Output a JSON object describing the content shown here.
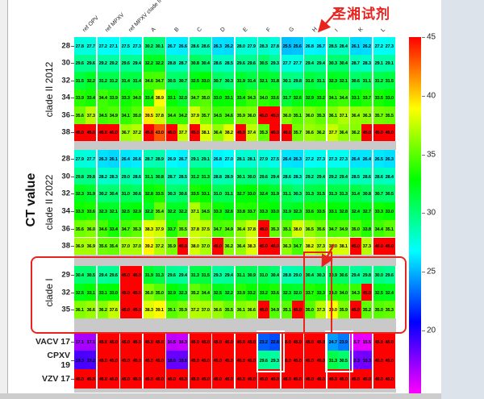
{
  "annotations": {
    "label": "圣湘试剂",
    "color": "#e8241f"
  },
  "chart_data": {
    "type": "heatmap",
    "title": "",
    "ylabel": "CT value",
    "legend_position": "right",
    "colorbar": {
      "min": 15,
      "max": 45,
      "ticks": [
        45,
        40,
        35,
        30,
        25,
        20
      ]
    },
    "columns": [
      "ref OPV",
      "ref MPXV",
      "ref MPXV clade II",
      "A",
      "B",
      "C",
      "D",
      "E",
      "F",
      "G",
      "H",
      "I",
      "K",
      "L"
    ],
    "blocks": [
      {
        "label": "clade II 2012",
        "rows": [
          {
            "tick": "28",
            "values": [
              27.8,
              27.7,
              27.2,
              27.1,
              27.5,
              27.3,
              30.2,
              30.1,
              26.7,
              26.6,
              28.6,
              28.6,
              26.3,
              26.2,
              28.0,
              27.9,
              28.3,
              27.8,
              25.5,
              25.6,
              26.8,
              26.7,
              28.5,
              28.4,
              26.1,
              26.2,
              27.2,
              27.3
            ]
          },
          {
            "tick": "30",
            "values": [
              29.6,
              29.6,
              29.2,
              29.2,
              29.6,
              29.4,
              32.2,
              32.2,
              28.8,
              28.7,
              30.8,
              30.4,
              28.6,
              28.5,
              29.6,
              29.6,
              30.5,
              29.3,
              27.7,
              27.7,
              29.4,
              29.4,
              30.3,
              30.4,
              28.7,
              28.3,
              29.1,
              29.1
            ]
          },
          {
            "tick": "32",
            "values": [
              31.5,
              32.2,
              31.2,
              31.2,
              31.4,
              31.4,
              34.6,
              34.7,
              30.5,
              30.7,
              32.5,
              33.0,
              30.7,
              30.3,
              31.9,
              31.4,
              32.1,
              31.8,
              30.1,
              29.8,
              31.6,
              31.1,
              32.3,
              32.1,
              30.6,
              31.1,
              31.2,
              31.5
            ]
          },
          {
            "tick": "34",
            "values": [
              33.9,
              33.4,
              34.4,
              33.9,
              33.3,
              34.0,
              33.4,
              38.9,
              33.1,
              32.0,
              34.7,
              35.0,
              33.0,
              33.1,
              33.4,
              34.3,
              34.0,
              33.6,
              31.7,
              32.6,
              32.9,
              33.2,
              34.1,
              34.4,
              33.1,
              33.7,
              33.5,
              33.0
            ]
          },
          {
            "tick": "36",
            "values": [
              35.6,
              37.3,
              34.5,
              34.9,
              34.1,
              35.0,
              39.5,
              37.8,
              34.4,
              34.2,
              37.9,
              35.7,
              34.5,
              34.6,
              35.9,
              36.0,
              45.0,
              45.0,
              36.0,
              35.1,
              36.0,
              35.3,
              36.1,
              37.1,
              36.4,
              36.3,
              35.7,
              35.5
            ]
          },
          {
            "tick": "38",
            "values": [
              45.0,
              45.0,
              45.0,
              45.0,
              36.7,
              37.2,
              45.0,
              43.0,
              45.0,
              37.7,
              45.0,
              38.1,
              36.4,
              38.2,
              45.0,
              37.4,
              35.3,
              45.0,
              45.0,
              35.7,
              36.6,
              36.2,
              37.7,
              36.4,
              36.2,
              45.0,
              45.0,
              45.0
            ]
          }
        ]
      },
      {
        "label": "clade II 2022",
        "rows": [
          {
            "tick": "28",
            "values": [
              27.9,
              27.7,
              26.3,
              26.1,
              26.4,
              26.6,
              28.7,
              28.9,
              26.9,
              26.7,
              29.1,
              29.1,
              26.8,
              27.0,
              28.1,
              28.1,
              27.9,
              27.5,
              26.4,
              26.3,
              27.2,
              27.3,
              27.3,
              27.3,
              26.4,
              26.4,
              26.5,
              26.3
            ]
          },
          {
            "tick": "30",
            "values": [
              29.8,
              29.8,
              28.2,
              28.3,
              29.0,
              28.6,
              31.1,
              30.8,
              28.7,
              28.5,
              31.2,
              31.3,
              28.8,
              28.9,
              30.1,
              30.0,
              29.6,
              29.4,
              28.6,
              28.3,
              29.2,
              29.4,
              29.2,
              29.4,
              28.5,
              28.6,
              28.6,
              28.4
            ]
          },
          {
            "tick": "32",
            "values": [
              32.3,
              31.9,
              30.2,
              30.4,
              31.0,
              30.6,
              32.8,
              33.5,
              30.3,
              30.6,
              33.5,
              33.1,
              31.0,
              31.1,
              32.7,
              33.0,
              32.4,
              31.9,
              31.1,
              30.3,
              31.3,
              31.5,
              31.3,
              31.3,
              31.4,
              30.8,
              30.7,
              30.5
            ]
          },
          {
            "tick": "34",
            "values": [
              33.3,
              33.6,
              32.3,
              32.1,
              32.5,
              32.9,
              32.2,
              35.4,
              32.2,
              32.2,
              37.1,
              34.5,
              33.3,
              32.6,
              33.8,
              33.7,
              33.3,
              33.0,
              31.9,
              32.3,
              33.6,
              33.5,
              33.1,
              32.8,
              32.4,
              32.7,
              33.3,
              33.0
            ]
          },
          {
            "tick": "36",
            "values": [
              35.6,
              36.0,
              34.6,
              33.4,
              34.7,
              35.3,
              38.3,
              37.9,
              33.7,
              35.5,
              37.8,
              37.5,
              34.7,
              34.9,
              36.4,
              37.8,
              45.0,
              35.3,
              35.1,
              38.0,
              36.5,
              35.6,
              34.7,
              34.9,
              35.0,
              33.8,
              34.4,
              35.1
            ]
          },
          {
            "tick": "38",
            "values": [
              36.9,
              36.9,
              35.6,
              35.4,
              37.0,
              37.0,
              39.2,
              37.2,
              35.9,
              45.0,
              38.0,
              37.0,
              45.0,
              36.2,
              36.4,
              38.3,
              45.0,
              45.0,
              36.3,
              34.7,
              38.2,
              37.3,
              38.0,
              38.1,
              45.0,
              37.3,
              45.0,
              45.0
            ]
          }
        ]
      },
      {
        "label": "clade I",
        "rows": [
          {
            "tick": "29",
            "values": [
              30.4,
              30.5,
              29.4,
              29.6,
              45.0,
              45.0,
              31.9,
              31.3,
              29.6,
              29.4,
              31.3,
              31.5,
              29.3,
              29.4,
              31.1,
              30.9,
              31.0,
              30.4,
              28.8,
              29.0,
              30.4,
              30.3,
              30.9,
              30.6,
              29.4,
              29.8,
              30.0,
              29.6
            ]
          },
          {
            "tick": "32",
            "values": [
              32.5,
              33.1,
              33.1,
              33.0,
              45.0,
              45.0,
              36.0,
              35.0,
              32.9,
              32.3,
              35.2,
              34.4,
              32.5,
              32.2,
              33.9,
              33.2,
              33.2,
              33.6,
              32.3,
              32.0,
              33.7,
              33.3,
              34.0,
              34.0,
              34.3,
              45.0,
              32.5,
              32.4
            ]
          },
          {
            "tick": "35",
            "values": [
              36.1,
              36.6,
              36.2,
              37.6,
              45.0,
              45.0,
              38.3,
              39.1,
              35.1,
              35.9,
              37.2,
              37.0,
              36.6,
              35.5,
              36.1,
              36.6,
              45.0,
              34.9,
              35.1,
              45.0,
              35.0,
              37.3,
              39.0,
              35.9,
              45.0,
              35.2,
              35.0,
              35.3
            ]
          }
        ]
      },
      {
        "label": "",
        "rows": [
          {
            "tick": "VACV 17",
            "values": [
              17.1,
              17.1,
              45.0,
              45.0,
              45.0,
              45.0,
              45.0,
              45.0,
              16.5,
              16.3,
              45.0,
              45.0,
              45.0,
              45.0,
              45.0,
              45.0,
              23.2,
              22.8,
              45.0,
              45.0,
              45.0,
              45.0,
              24.7,
              23.9,
              15.7,
              15.5,
              45.0,
              45.0
            ]
          },
          {
            "tick": "CPXV 19",
            "values": [
              19.3,
              19.2,
              45.0,
              45.0,
              45.0,
              45.0,
              45.0,
              45.0,
              18.6,
              18.6,
              45.0,
              45.0,
              45.0,
              45.0,
              45.0,
              45.0,
              29.6,
              29.3,
              45.0,
              45.0,
              45.0,
              45.0,
              31.3,
              30.5,
              18.3,
              18.3,
              45.0,
              45.0
            ]
          },
          {
            "tick": "VZV 17",
            "values": [
              45.0,
              45.0,
              45.0,
              45.0,
              45.0,
              45.0,
              45.0,
              45.0,
              45.0,
              45.0,
              45.0,
              45.0,
              45.0,
              45.0,
              45.0,
              45.0,
              45.0,
              45.0,
              45.0,
              45.0,
              45.0,
              45.0,
              45.0,
              45.0,
              45.0,
              45.0,
              45.0,
              45.0
            ]
          }
        ]
      }
    ]
  }
}
